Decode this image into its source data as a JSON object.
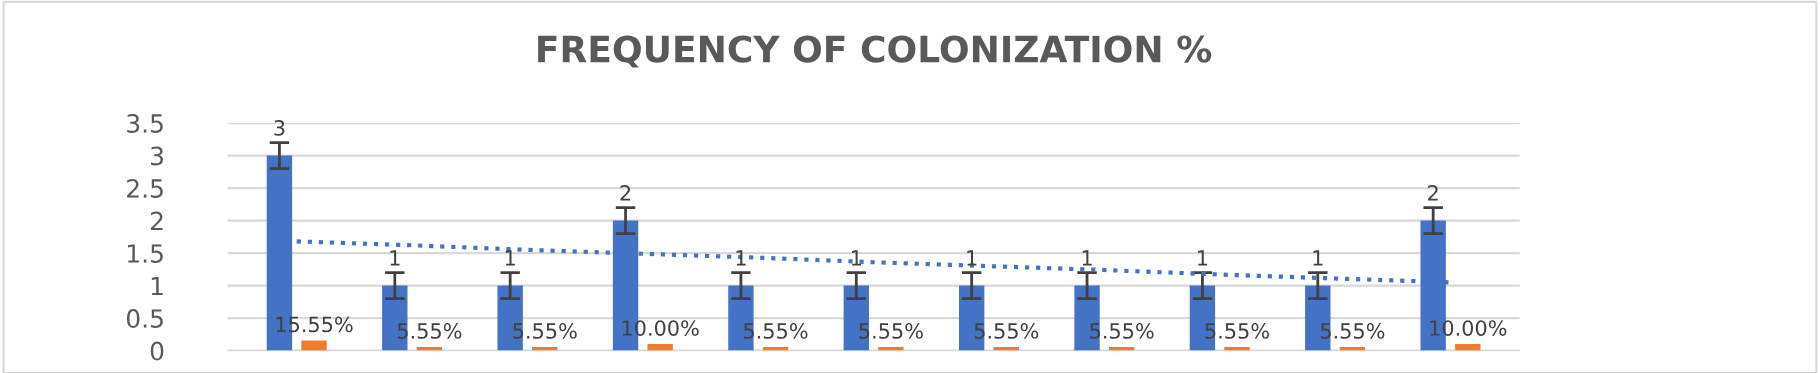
{
  "chart_data": {
    "type": "bar",
    "title": "FREQUENCY OF COLONIZATION %",
    "categories": [
      null,
      null,
      null,
      null,
      null,
      null,
      null,
      null,
      null,
      null,
      null
    ],
    "series": [
      {
        "color": "#4472c4",
        "values": [
          3,
          1,
          1,
          2,
          1,
          1,
          1,
          1,
          1,
          1,
          2
        ],
        "errors": [
          0.2,
          0.2,
          0.2,
          0.2,
          0.2,
          0.2,
          0.2,
          0.2,
          0.2,
          0.2,
          0.2
        ],
        "value_labels": [
          "3",
          "1",
          "1",
          "2",
          "1",
          "1",
          "1",
          "1",
          "1",
          "1",
          "2"
        ]
      },
      {
        "color": "#ed7d31",
        "values": [
          0.1555,
          0.0555,
          0.0555,
          0.1,
          0.0555,
          0.0555,
          0.0555,
          0.0555,
          0.0555,
          0.0555,
          0.1
        ],
        "value_labels": [
          "15.55%",
          "5.55%",
          "5.55%",
          "10.00%",
          "5.55%",
          "5.55%",
          "5.55%",
          "5.55%",
          "5.55%",
          "5.55%",
          "10.00%"
        ]
      },
      {
        "type": "line",
        "color": "#4472c4",
        "line_style": "dotted",
        "values": [
          1.68,
          1.62,
          1.55,
          1.49,
          1.43,
          1.36,
          1.3,
          1.24,
          1.17,
          1.11,
          1.05
        ]
      }
    ],
    "ylim": [
      0,
      3.5
    ],
    "yticks": [
      0,
      0.5,
      1,
      1.5,
      2,
      2.5,
      3,
      3.5
    ],
    "grid": "y"
  }
}
